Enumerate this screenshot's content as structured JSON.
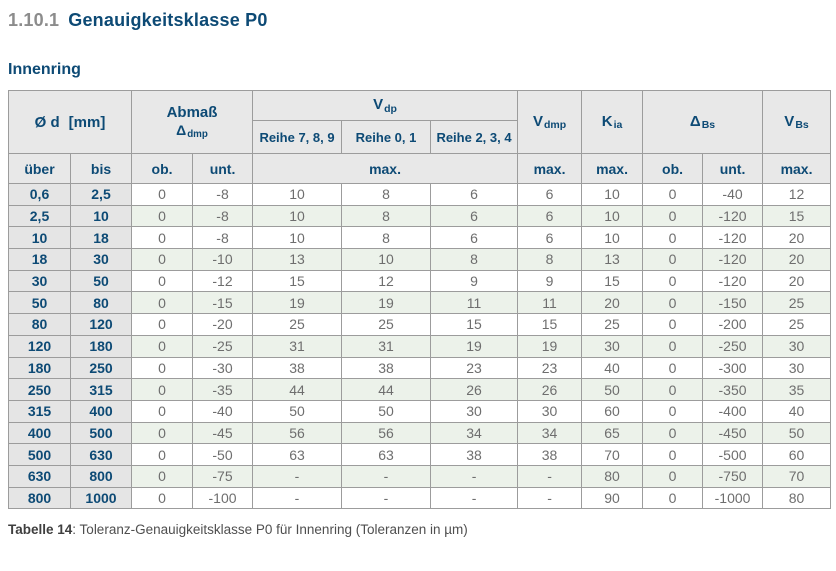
{
  "page": {
    "section_number": "1.10.1",
    "section_title": "Genauigkeitsklasse P0",
    "subtitle": "Innenring",
    "caption_label": "Tabelle 14",
    "caption_text": ": Toleranz-Genauigkeitsklasse P0 für Innenring (Toleranzen in µm)"
  },
  "colors": {
    "heading_blue": "#0d4a75",
    "section_number_gray": "#8c8c8c",
    "header_bg": "#e8e8e8",
    "label_column_bg": "#e5e5e5",
    "stripe_green": "#ecf2ea",
    "border_gray": "#9c9c9c",
    "data_text_gray": "#6e6e6e"
  },
  "table": {
    "header": {
      "diameter_main": "Ø d",
      "diameter_unit": "[mm]",
      "abmass_line1": "Abmaß",
      "abmass_symbol": "Δ",
      "abmass_sub": "dmp",
      "vdp_main": "V",
      "vdp_sub": "dp",
      "reihe789": "Reihe 7, 8, 9",
      "reihe01": "Reihe 0, 1",
      "reihe234": "Reihe 2, 3, 4",
      "vdmp_main": "V",
      "vdmp_sub": "dmp",
      "kia_main": "K",
      "kia_sub": "ia",
      "dbs_symbol": "Δ",
      "dbs_sub": "Bs",
      "vbs_main": "V",
      "vbs_sub": "Bs",
      "ueber": "über",
      "bis": "bis",
      "ob": "ob.",
      "unt": "unt.",
      "max_vdp": "max.",
      "max_vdmp": "max.",
      "max_kia": "max.",
      "ob_dbs": "ob.",
      "unt_dbs": "unt.",
      "max_vbs": "max."
    },
    "rows": [
      [
        "0,6",
        "2,5",
        "0",
        "-8",
        "10",
        "8",
        "6",
        "6",
        "10",
        "0",
        "-40",
        "12"
      ],
      [
        "2,5",
        "10",
        "0",
        "-8",
        "10",
        "8",
        "6",
        "6",
        "10",
        "0",
        "-120",
        "15"
      ],
      [
        "10",
        "18",
        "0",
        "-8",
        "10",
        "8",
        "6",
        "6",
        "10",
        "0",
        "-120",
        "20"
      ],
      [
        "18",
        "30",
        "0",
        "-10",
        "13",
        "10",
        "8",
        "8",
        "13",
        "0",
        "-120",
        "20"
      ],
      [
        "30",
        "50",
        "0",
        "-12",
        "15",
        "12",
        "9",
        "9",
        "15",
        "0",
        "-120",
        "20"
      ],
      [
        "50",
        "80",
        "0",
        "-15",
        "19",
        "19",
        "11",
        "11",
        "20",
        "0",
        "-150",
        "25"
      ],
      [
        "80",
        "120",
        "0",
        "-20",
        "25",
        "25",
        "15",
        "15",
        "25",
        "0",
        "-200",
        "25"
      ],
      [
        "120",
        "180",
        "0",
        "-25",
        "31",
        "31",
        "19",
        "19",
        "30",
        "0",
        "-250",
        "30"
      ],
      [
        "180",
        "250",
        "0",
        "-30",
        "38",
        "38",
        "23",
        "23",
        "40",
        "0",
        "-300",
        "30"
      ],
      [
        "250",
        "315",
        "0",
        "-35",
        "44",
        "44",
        "26",
        "26",
        "50",
        "0",
        "-350",
        "35"
      ],
      [
        "315",
        "400",
        "0",
        "-40",
        "50",
        "50",
        "30",
        "30",
        "60",
        "0",
        "-400",
        "40"
      ],
      [
        "400",
        "500",
        "0",
        "-45",
        "56",
        "56",
        "34",
        "34",
        "65",
        "0",
        "-450",
        "50"
      ],
      [
        "500",
        "630",
        "0",
        "-50",
        "63",
        "63",
        "38",
        "38",
        "70",
        "0",
        "-500",
        "60"
      ],
      [
        "630",
        "800",
        "0",
        "-75",
        "-",
        "-",
        "-",
        "-",
        "80",
        "0",
        "-750",
        "70"
      ],
      [
        "800",
        "1000",
        "0",
        "-100",
        "-",
        "-",
        "-",
        "-",
        "90",
        "0",
        "-1000",
        "80"
      ]
    ]
  }
}
